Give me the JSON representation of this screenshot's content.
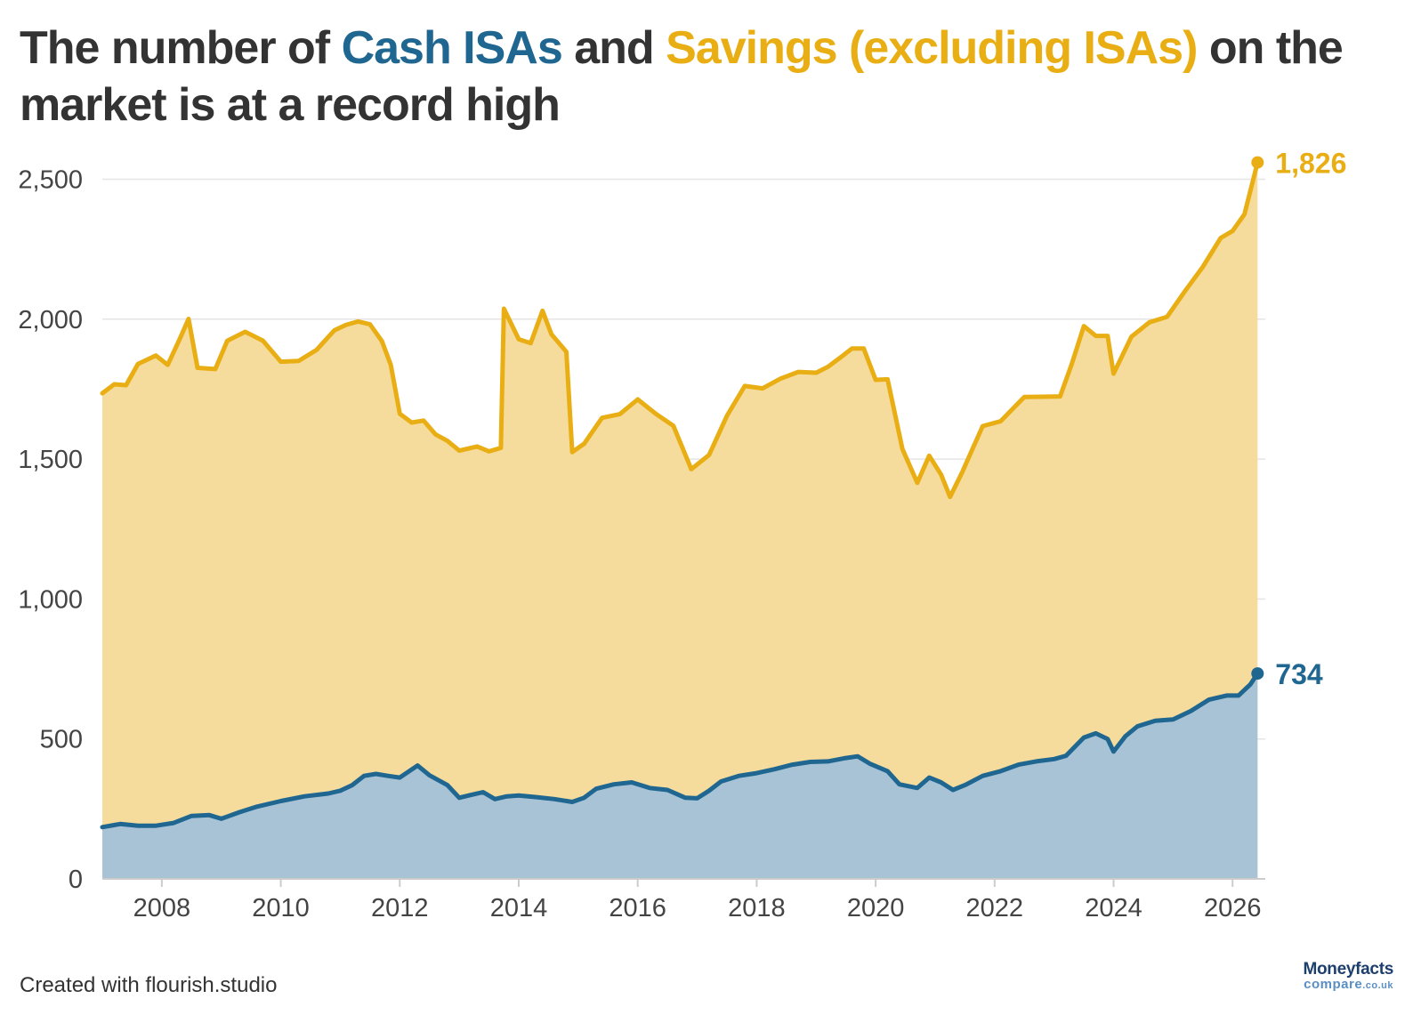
{
  "title": {
    "part1": "The number of ",
    "cash": "Cash ISAs",
    "part2": " and ",
    "savings": "Savings (excluding ISAs)",
    "part3": " on the market is at a record high"
  },
  "footer": "Created with flourish.studio",
  "brand": {
    "name": "Moneyfacts",
    "sub": "compare",
    "tld": ".co.uk"
  },
  "colors": {
    "cash_line": "#1f6691",
    "cash_fill": "#a9c3d6",
    "savings_line": "#e8ae14",
    "savings_fill": "#f5dc9c",
    "gridline": "#e5e5e5",
    "axis": "#cccccc"
  },
  "chart_data": {
    "type": "area",
    "stacked": true,
    "title": "The number of Cash ISAs and Savings (excluding ISAs) on the market is at a record high",
    "xlabel": "",
    "ylabel": "",
    "xlim": [
      2007.0,
      2026.55
    ],
    "ylim": [
      0,
      2600
    ],
    "x_ticks": [
      "2008",
      "2010",
      "2012",
      "2014",
      "2016",
      "2018",
      "2020",
      "2022",
      "2024",
      "2026"
    ],
    "y_ticks": [
      "0",
      "500",
      "1,000",
      "1,500",
      "2,000",
      "2,500"
    ],
    "grid": true,
    "legend": "none",
    "end_labels": [
      "1,826",
      "734"
    ],
    "series": [
      {
        "name": "Cash ISAs",
        "points": [
          [
            2007.0,
            185
          ],
          [
            2007.3,
            196
          ],
          [
            2007.6,
            190
          ],
          [
            2007.9,
            190
          ],
          [
            2008.2,
            200
          ],
          [
            2008.5,
            225
          ],
          [
            2008.8,
            228
          ],
          [
            2009.0,
            215
          ],
          [
            2009.3,
            238
          ],
          [
            2009.6,
            258
          ],
          [
            2010.0,
            278
          ],
          [
            2010.4,
            295
          ],
          [
            2010.8,
            305
          ],
          [
            2011.0,
            315
          ],
          [
            2011.2,
            335
          ],
          [
            2011.4,
            368
          ],
          [
            2011.6,
            375
          ],
          [
            2011.8,
            368
          ],
          [
            2012.0,
            362
          ],
          [
            2012.3,
            405
          ],
          [
            2012.5,
            370
          ],
          [
            2012.8,
            335
          ],
          [
            2013.0,
            290
          ],
          [
            2013.2,
            300
          ],
          [
            2013.4,
            310
          ],
          [
            2013.6,
            285
          ],
          [
            2013.8,
            295
          ],
          [
            2014.0,
            298
          ],
          [
            2014.3,
            292
          ],
          [
            2014.6,
            285
          ],
          [
            2014.9,
            275
          ],
          [
            2015.1,
            290
          ],
          [
            2015.3,
            322
          ],
          [
            2015.6,
            338
          ],
          [
            2015.9,
            345
          ],
          [
            2016.2,
            325
          ],
          [
            2016.5,
            318
          ],
          [
            2016.8,
            290
          ],
          [
            2017.0,
            288
          ],
          [
            2017.2,
            315
          ],
          [
            2017.4,
            348
          ],
          [
            2017.7,
            368
          ],
          [
            2018.0,
            378
          ],
          [
            2018.3,
            392
          ],
          [
            2018.6,
            408
          ],
          [
            2018.9,
            418
          ],
          [
            2019.2,
            420
          ],
          [
            2019.5,
            432
          ],
          [
            2019.7,
            438
          ],
          [
            2019.9,
            412
          ],
          [
            2020.2,
            385
          ],
          [
            2020.4,
            338
          ],
          [
            2020.7,
            325
          ],
          [
            2020.9,
            362
          ],
          [
            2021.1,
            345
          ],
          [
            2021.3,
            318
          ],
          [
            2021.5,
            335
          ],
          [
            2021.8,
            368
          ],
          [
            2022.1,
            385
          ],
          [
            2022.4,
            408
          ],
          [
            2022.7,
            420
          ],
          [
            2023.0,
            428
          ],
          [
            2023.2,
            440
          ],
          [
            2023.5,
            505
          ],
          [
            2023.7,
            520
          ],
          [
            2023.9,
            500
          ],
          [
            2024.0,
            455
          ],
          [
            2024.2,
            510
          ],
          [
            2024.4,
            545
          ],
          [
            2024.7,
            565
          ],
          [
            2025.0,
            570
          ],
          [
            2025.3,
            600
          ],
          [
            2025.6,
            640
          ],
          [
            2025.9,
            655
          ],
          [
            2026.1,
            655
          ],
          [
            2026.3,
            695
          ],
          [
            2026.42,
            734
          ]
        ]
      },
      {
        "name": "Savings (excluding ISAs)",
        "points": [
          [
            2007.0,
            1550
          ],
          [
            2007.2,
            1575
          ],
          [
            2007.4,
            1570
          ],
          [
            2007.6,
            1650
          ],
          [
            2007.9,
            1680
          ],
          [
            2008.1,
            1640
          ],
          [
            2008.3,
            1720
          ],
          [
            2008.45,
            1780
          ],
          [
            2008.6,
            1600
          ],
          [
            2008.9,
            1600
          ],
          [
            2009.1,
            1700
          ],
          [
            2009.4,
            1710
          ],
          [
            2009.7,
            1660
          ],
          [
            2010.0,
            1570
          ],
          [
            2010.3,
            1560
          ],
          [
            2010.6,
            1590
          ],
          [
            2010.9,
            1650
          ],
          [
            2011.1,
            1655
          ],
          [
            2011.3,
            1640
          ],
          [
            2011.5,
            1610
          ],
          [
            2011.7,
            1550
          ],
          [
            2011.85,
            1470
          ],
          [
            2012.0,
            1300
          ],
          [
            2012.2,
            1240
          ],
          [
            2012.4,
            1250
          ],
          [
            2012.6,
            1230
          ],
          [
            2012.8,
            1230
          ],
          [
            2013.0,
            1240
          ],
          [
            2013.3,
            1240
          ],
          [
            2013.5,
            1230
          ],
          [
            2013.7,
            1250
          ],
          [
            2013.75,
            1745
          ],
          [
            2014.0,
            1630
          ],
          [
            2014.2,
            1620
          ],
          [
            2014.4,
            1740
          ],
          [
            2014.55,
            1660
          ],
          [
            2014.8,
            1605
          ],
          [
            2014.9,
            1250
          ],
          [
            2015.1,
            1265
          ],
          [
            2015.4,
            1320
          ],
          [
            2015.7,
            1320
          ],
          [
            2016.0,
            1375
          ],
          [
            2016.3,
            1340
          ],
          [
            2016.6,
            1310
          ],
          [
            2016.9,
            1175
          ],
          [
            2017.2,
            1200
          ],
          [
            2017.5,
            1300
          ],
          [
            2017.8,
            1390
          ],
          [
            2018.1,
            1370
          ],
          [
            2018.4,
            1390
          ],
          [
            2018.7,
            1400
          ],
          [
            2019.0,
            1390
          ],
          [
            2019.2,
            1410
          ],
          [
            2019.45,
            1440
          ],
          [
            2019.6,
            1460
          ],
          [
            2019.8,
            1470
          ],
          [
            2020.0,
            1380
          ],
          [
            2020.2,
            1400
          ],
          [
            2020.45,
            1200
          ],
          [
            2020.7,
            1090
          ],
          [
            2020.9,
            1150
          ],
          [
            2021.1,
            1100
          ],
          [
            2021.25,
            1040
          ],
          [
            2021.45,
            1120
          ],
          [
            2021.8,
            1250
          ],
          [
            2022.1,
            1250
          ],
          [
            2022.5,
            1310
          ],
          [
            2022.8,
            1300
          ],
          [
            2023.1,
            1290
          ],
          [
            2023.3,
            1380
          ],
          [
            2023.5,
            1470
          ],
          [
            2023.7,
            1420
          ],
          [
            2023.9,
            1440
          ],
          [
            2024.0,
            1350
          ],
          [
            2024.3,
            1410
          ],
          [
            2024.6,
            1430
          ],
          [
            2024.9,
            1440
          ],
          [
            2025.2,
            1510
          ],
          [
            2025.5,
            1560
          ],
          [
            2025.8,
            1640
          ],
          [
            2026.0,
            1660
          ],
          [
            2026.2,
            1700
          ],
          [
            2026.42,
            1826
          ]
        ]
      }
    ]
  }
}
